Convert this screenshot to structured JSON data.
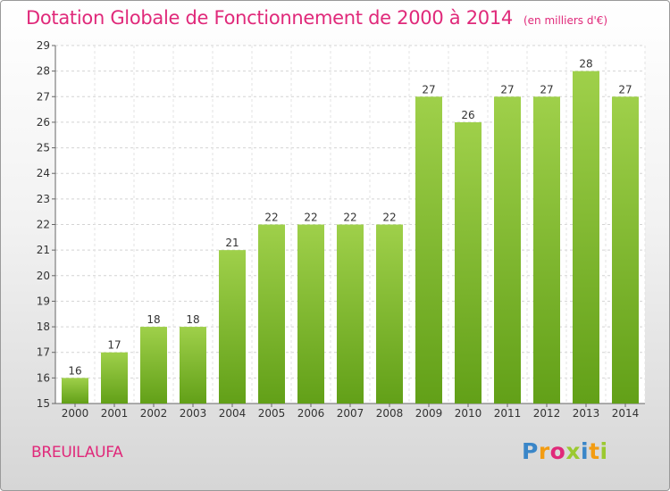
{
  "header": {
    "title": "Dotation Globale de Fonctionnement de 2000 à 2014",
    "unit": "(en milliers d'€)"
  },
  "footer": {
    "commune": "BREUILAUFA",
    "logo_text": "Proxiti"
  },
  "colors": {
    "accent": "#e0297a",
    "bar_top": "#9fd04a",
    "bar_bottom": "#62a018"
  },
  "chart_data": {
    "type": "bar",
    "categories": [
      "2000",
      "2001",
      "2002",
      "2003",
      "2004",
      "2005",
      "2006",
      "2007",
      "2008",
      "2009",
      "2010",
      "2011",
      "2012",
      "2013",
      "2014"
    ],
    "values": [
      16,
      17,
      18,
      18,
      21,
      22,
      22,
      22,
      22,
      27,
      26,
      27,
      27,
      28,
      27
    ],
    "title": "Dotation Globale de Fonctionnement de 2000 à 2014",
    "subtitle": "(en milliers d'€)",
    "ylim": [
      15,
      29
    ],
    "yticks": [
      15,
      16,
      17,
      18,
      19,
      20,
      21,
      22,
      23,
      24,
      25,
      26,
      27,
      28,
      29
    ],
    "grid": true,
    "data_labels": true
  }
}
